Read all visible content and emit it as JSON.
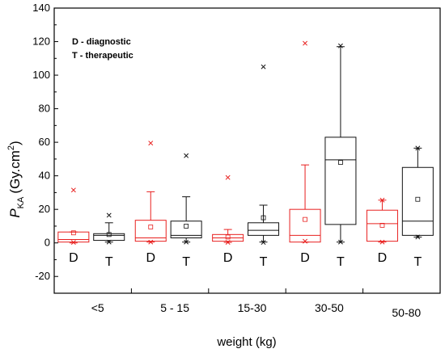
{
  "chart_data": {
    "type": "box",
    "title": "",
    "xlabel": "weight (kg)",
    "ylabel_main": "P",
    "ylabel_sub": "KA",
    "ylabel_unit": "(Gy.cm",
    "ylabel_sup": "2",
    "ylabel_close": ")",
    "ylim": [
      -30,
      140
    ],
    "yticks": [
      -20,
      0,
      20,
      40,
      60,
      80,
      100,
      120,
      140
    ],
    "categories": [
      "<5",
      "5 - 15",
      "15-30",
      "30-50",
      "50-80"
    ],
    "legend": [
      "D - diagnostic",
      "T - therapeutic"
    ],
    "colors": {
      "D": "#e8201f",
      "T": "#111111"
    },
    "boxes": [
      {
        "category": "<5",
        "label": "D",
        "group": "D",
        "q1": 0.5,
        "median": 2,
        "q3": 6.5,
        "whisker_low": 0,
        "whisker_high": 6.5,
        "mean": 6,
        "min": 0.3,
        "max": 31.5
      },
      {
        "category": "<5",
        "label": "T",
        "group": "T",
        "q1": 1.5,
        "median": 4.5,
        "q3": 5.5,
        "whisker_low": 0.5,
        "whisker_high": 12,
        "mean": 5,
        "min": 0.5,
        "max": 16.5
      },
      {
        "category": "5 - 15",
        "label": "D",
        "group": "D",
        "q1": 1,
        "median": 3,
        "q3": 13.5,
        "whisker_low": 0.5,
        "whisker_high": 30.5,
        "mean": 9.5,
        "min": 0.5,
        "max": 59.5
      },
      {
        "category": "5 - 15",
        "label": "T",
        "group": "T",
        "q1": 3,
        "median": 4.5,
        "q3": 13,
        "whisker_low": 0.5,
        "whisker_high": 27.5,
        "mean": 10,
        "min": 0.5,
        "max": 52
      },
      {
        "category": "15-30",
        "label": "D",
        "group": "D",
        "q1": 1,
        "median": 3,
        "q3": 5,
        "whisker_low": 0.3,
        "whisker_high": 8,
        "mean": 3.5,
        "min": 0.3,
        "max": 39
      },
      {
        "category": "15-30",
        "label": "T",
        "group": "T",
        "q1": 4.5,
        "median": 7.5,
        "q3": 12,
        "whisker_low": 0.5,
        "whisker_high": 22.5,
        "mean": 15,
        "min": 0.3,
        "max": 105
      },
      {
        "category": "30-50",
        "label": "D",
        "group": "D",
        "q1": 0.5,
        "median": 4.5,
        "q3": 20,
        "whisker_low": 0.5,
        "whisker_high": 46.5,
        "mean": 14,
        "min": 1,
        "max": 119
      },
      {
        "category": "30-50",
        "label": "T",
        "group": "T",
        "q1": 11,
        "median": 49.5,
        "q3": 63,
        "whisker_low": 0.5,
        "whisker_high": 117,
        "mean": 48,
        "min": 0.5,
        "max": 117.5
      },
      {
        "category": "50-80",
        "label": "D",
        "group": "D",
        "q1": 1,
        "median": 11.5,
        "q3": 19.5,
        "whisker_low": 0.5,
        "whisker_high": 25.5,
        "mean": 10.5,
        "min": 0.5,
        "max": 25.5
      },
      {
        "category": "50-80",
        "label": "T",
        "group": "T",
        "q1": 4.5,
        "median": 13,
        "q3": 45,
        "whisker_low": 3.5,
        "whisker_high": 56.5,
        "mean": 26,
        "min": 3.5,
        "max": 56.5
      }
    ]
  }
}
